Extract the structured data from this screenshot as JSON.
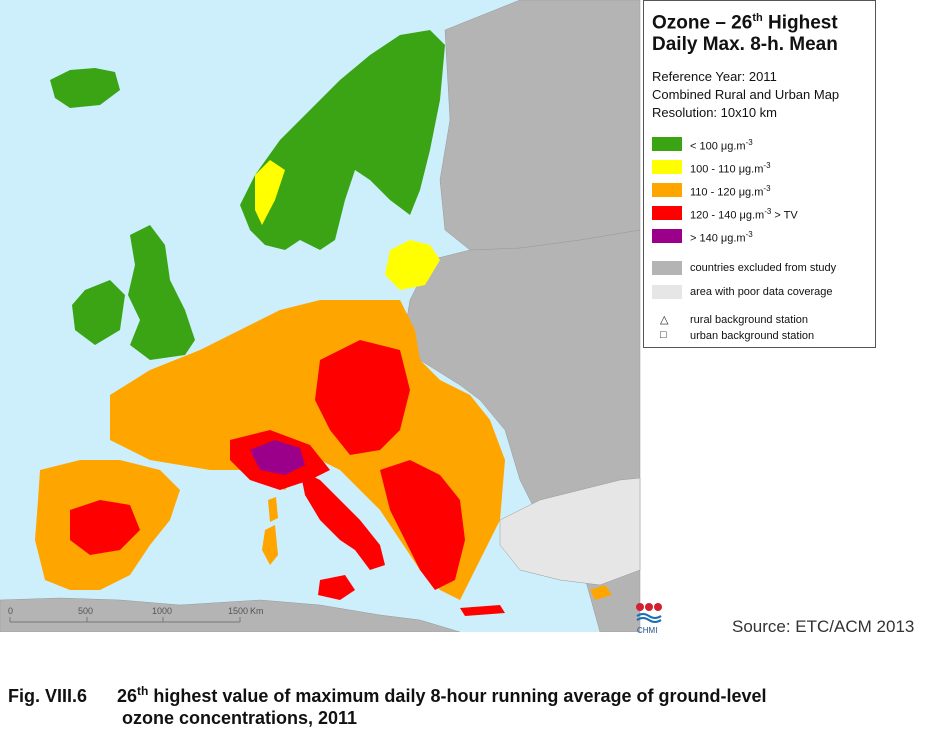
{
  "legend": {
    "title_prefix": "Ozone – 26",
    "title_sup": "th",
    "title_suffix": " Highest",
    "title_line2": "Daily Max. 8-h. Mean",
    "reference_year": "Reference Year: 2011",
    "map_type": "Combined Rural and Urban Map",
    "resolution": "Resolution: 10x10 km",
    "classes": [
      {
        "range": "<  100  μg.m",
        "sup": "-3",
        "suffix": "",
        "color": "#3aa414"
      },
      {
        "range": "100 - 110  μg.m",
        "sup": "-3",
        "suffix": "",
        "color": "#ffff00"
      },
      {
        "range": "110 - 120  μg.m",
        "sup": "-3",
        "suffix": "",
        "color": "#ffa500"
      },
      {
        "range": "120 - 140  μg.m",
        "sup": "-3",
        "suffix": "  > TV",
        "color": "#ff0000"
      },
      {
        "range": ">  140  μg.m",
        "sup": "-3",
        "suffix": "",
        "color": "#9a0089"
      }
    ],
    "excluded_label": "countries excluded from study",
    "excluded_color": "#b4b4b4",
    "poor_coverage_label": "area with poor data coverage",
    "poor_coverage_color": "#e6e6e6",
    "rural_station_label": "rural background station",
    "urban_station_label": "urban background station"
  },
  "scale": {
    "ticks": [
      "0",
      "500",
      "1000",
      "1500"
    ],
    "unit": "Km"
  },
  "logo_text": "CHMI",
  "source": "Source: ETC/ACM 2013",
  "caption": {
    "number": "Fig. VIII.6",
    "ordinal": "26",
    "ordinal_sup": "th",
    "line1_rest": " highest value of maximum daily 8-hour running average of ground-level",
    "line2": "ozone concentrations, 2011"
  },
  "colors": {
    "sea": "#cdeffb",
    "green": "#3aa414",
    "yellow": "#ffff00",
    "orange": "#ffa500",
    "red": "#ff0000",
    "purple": "#9a0089",
    "grey": "#b4b4b4",
    "light_grey": "#e6e6e6"
  }
}
